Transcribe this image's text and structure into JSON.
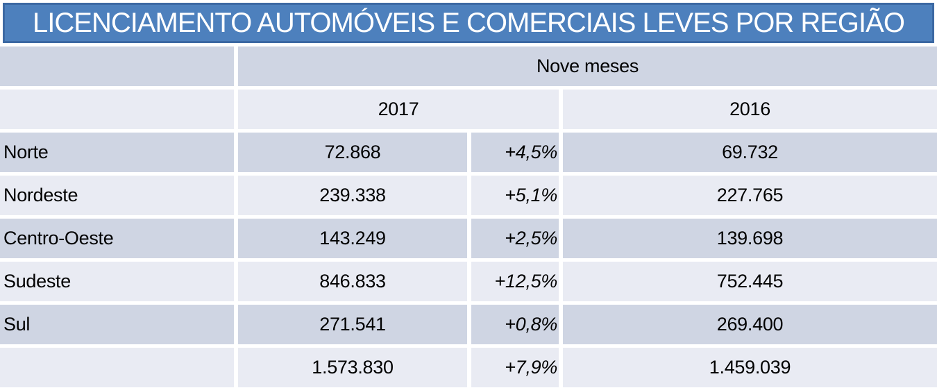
{
  "title": "LICENCIAMENTO AUTOMÓVEIS E COMERCIAIS LEVES POR REGIÃO",
  "colors": {
    "title_bg": "#4d80bd",
    "title_border": "#3c69a3",
    "row_dark": "#cfd5e3",
    "row_light": "#e9ebf3",
    "title_text": "#ffffff"
  },
  "header": {
    "period_label": "Nove meses",
    "year_current": "2017",
    "year_prior": "2016"
  },
  "chart_data": {
    "type": "table",
    "title": "LICENCIAMENTO AUTOMÓVEIS E COMERCIAIS LEVES POR REGIÃO",
    "period": "Nove meses",
    "year_columns": [
      "2017",
      "2016"
    ],
    "rows": [
      {
        "region": "Norte",
        "value_2017": "72.868",
        "variation": "+4,5%",
        "value_2016": "69.732"
      },
      {
        "region": "Nordeste",
        "value_2017": "239.338",
        "variation": "+5,1%",
        "value_2016": "227.765"
      },
      {
        "region": "Centro-Oeste",
        "value_2017": "143.249",
        "variation": "+2,5%",
        "value_2016": "139.698"
      },
      {
        "region": "Sudeste",
        "value_2017": "846.833",
        "variation": "+12,5%",
        "value_2016": "752.445"
      },
      {
        "region": "Sul",
        "value_2017": "271.541",
        "variation": "+0,8%",
        "value_2016": "269.400"
      }
    ],
    "total": {
      "value_2017": "1.573.830",
      "variation": "+7,9%",
      "value_2016": "1.459.039"
    },
    "layout": {
      "row_band_colors": [
        "#cfd5e3",
        "#e9ebf3"
      ],
      "variation_style": "italic, right-aligned",
      "values_alignment": "center"
    }
  }
}
